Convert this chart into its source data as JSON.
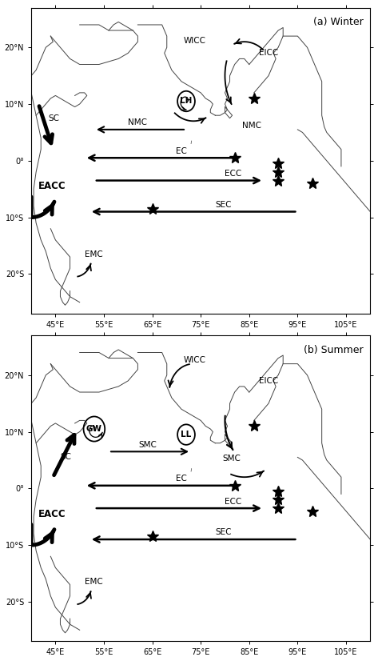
{
  "lon_min": 40,
  "lon_max": 110,
  "lat_min": -27,
  "lat_max": 27,
  "xticks": [
    45,
    55,
    65,
    75,
    85,
    95,
    105
  ],
  "yticks": [
    20,
    10,
    0,
    -10,
    -20
  ],
  "ytick_labels": [
    "20°N",
    "10°N",
    "0°",
    "10°S",
    "20°S"
  ],
  "xtick_labels": [
    "45°E",
    "55°E",
    "65°E",
    "75°E",
    "85°E",
    "95°E",
    "105°E"
  ],
  "panel_a_title": "(a) Winter",
  "panel_b_title": "(b) Summer",
  "coastline_color": "#444444",
  "fontsize_label": 7.5,
  "fontsize_tick": 7,
  "fontsize_title": 9
}
